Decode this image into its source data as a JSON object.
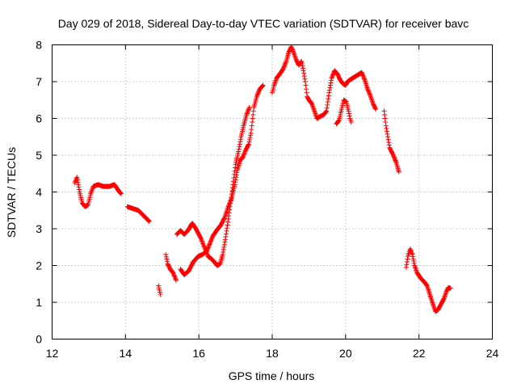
{
  "chart_data": {
    "type": "scatter",
    "title": "Day 029 of 2018, Sidereal Day-to-day VTEC variation (SDTVAR) for receiver bavc",
    "xlabel": "GPS time / hours",
    "ylabel": "SDTVAR / TECUs",
    "xlim": [
      12,
      24
    ],
    "ylim": [
      0,
      8
    ],
    "xticks": [
      "12",
      "14",
      "16",
      "18",
      "20",
      "22",
      "24"
    ],
    "yticks": [
      "0",
      "1",
      "2",
      "3",
      "4",
      "5",
      "6",
      "7",
      "8"
    ],
    "grid": true,
    "marker": "+",
    "color": "#ff0000",
    "series": [
      {
        "name": "SDTVAR",
        "polylines": [
          [
            [
              12.62,
              4.25
            ],
            [
              12.68,
              4.4
            ],
            [
              12.75,
              4.0
            ],
            [
              12.82,
              3.7
            ],
            [
              12.9,
              3.6
            ],
            [
              12.98,
              3.65
            ],
            [
              13.05,
              3.95
            ],
            [
              13.12,
              4.15
            ],
            [
              13.25,
              4.2
            ],
            [
              13.4,
              4.15
            ],
            [
              13.55,
              4.15
            ],
            [
              13.7,
              4.2
            ],
            [
              13.8,
              4.05
            ],
            [
              13.88,
              3.95
            ]
          ],
          [
            [
              14.05,
              3.6
            ],
            [
              14.2,
              3.55
            ],
            [
              14.35,
              3.5
            ],
            [
              14.45,
              3.4
            ],
            [
              14.55,
              3.3
            ],
            [
              14.65,
              3.2
            ]
          ],
          [
            [
              14.9,
              1.45
            ],
            [
              14.95,
              1.22
            ]
          ],
          [
            [
              15.1,
              2.3
            ],
            [
              15.15,
              2.05
            ],
            [
              15.22,
              1.9
            ],
            [
              15.3,
              1.8
            ],
            [
              15.38,
              1.6
            ]
          ],
          [
            [
              15.4,
              2.85
            ],
            [
              15.5,
              2.95
            ],
            [
              15.6,
              2.85
            ],
            [
              15.7,
              2.95
            ],
            [
              15.82,
              3.15
            ],
            [
              15.92,
              3.0
            ],
            [
              16.05,
              2.75
            ],
            [
              16.15,
              2.5
            ],
            [
              16.25,
              2.25
            ],
            [
              16.32,
              2.2
            ],
            [
              16.42,
              2.1
            ],
            [
              16.5,
              2.0
            ],
            [
              16.58,
              2.05
            ],
            [
              16.65,
              2.3
            ],
            [
              16.72,
              2.7
            ],
            [
              16.78,
              3.1
            ],
            [
              16.85,
              3.6
            ],
            [
              16.93,
              4.2
            ],
            [
              17.0,
              4.75
            ],
            [
              17.08,
              5.1
            ],
            [
              17.15,
              5.5
            ],
            [
              17.22,
              5.8
            ],
            [
              17.3,
              6.1
            ],
            [
              17.38,
              6.3
            ]
          ],
          [
            [
              15.5,
              1.9
            ],
            [
              15.6,
              1.75
            ],
            [
              15.72,
              1.85
            ],
            [
              15.85,
              2.1
            ],
            [
              15.98,
              2.25
            ],
            [
              16.1,
              2.3
            ],
            [
              16.22,
              2.4
            ],
            [
              16.3,
              2.6
            ],
            [
              16.38,
              2.8
            ],
            [
              16.48,
              2.95
            ],
            [
              16.6,
              3.1
            ],
            [
              16.7,
              3.3
            ],
            [
              16.8,
              3.6
            ],
            [
              16.9,
              3.85
            ],
            [
              16.98,
              4.2
            ],
            [
              17.05,
              4.6
            ],
            [
              17.12,
              4.85
            ],
            [
              17.2,
              4.95
            ],
            [
              17.28,
              5.15
            ],
            [
              17.36,
              5.3
            ],
            [
              17.42,
              5.6
            ],
            [
              17.5,
              6.3
            ],
            [
              17.58,
              6.6
            ],
            [
              17.66,
              6.8
            ],
            [
              17.75,
              6.9
            ]
          ],
          [
            [
              18.0,
              6.7
            ],
            [
              18.05,
              6.9
            ],
            [
              18.12,
              7.1
            ],
            [
              18.2,
              7.2
            ],
            [
              18.3,
              7.35
            ],
            [
              18.38,
              7.55
            ],
            [
              18.45,
              7.8
            ],
            [
              18.52,
              7.95
            ],
            [
              18.58,
              7.8
            ],
            [
              18.65,
              7.6
            ],
            [
              18.72,
              7.45
            ],
            [
              18.8,
              7.55
            ],
            [
              18.85,
              7.3
            ],
            [
              18.9,
              7.0
            ],
            [
              18.95,
              6.6
            ],
            [
              19.0,
              6.5
            ],
            [
              19.08,
              6.4
            ],
            [
              19.15,
              6.2
            ],
            [
              19.22,
              6.0
            ],
            [
              19.3,
              6.05
            ],
            [
              19.4,
              6.1
            ],
            [
              19.48,
              6.2
            ],
            [
              19.55,
              6.7
            ],
            [
              19.62,
              7.1
            ],
            [
              19.7,
              7.3
            ],
            [
              19.78,
              7.2
            ],
            [
              19.85,
              7.05
            ],
            [
              19.92,
              6.95
            ],
            [
              20.0,
              6.9
            ],
            [
              20.05,
              7.0
            ],
            [
              20.12,
              7.05
            ],
            [
              20.2,
              7.1
            ],
            [
              20.28,
              7.15
            ],
            [
              20.36,
              7.2
            ],
            [
              20.44,
              7.25
            ],
            [
              20.52,
              7.05
            ],
            [
              20.6,
              6.8
            ],
            [
              20.68,
              6.6
            ],
            [
              20.75,
              6.4
            ],
            [
              20.82,
              6.25
            ]
          ],
          [
            [
              19.75,
              5.85
            ],
            [
              19.82,
              5.95
            ],
            [
              19.88,
              6.2
            ],
            [
              19.95,
              6.5
            ],
            [
              20.02,
              6.45
            ],
            [
              20.08,
              6.2
            ],
            [
              20.12,
              6.0
            ],
            [
              20.15,
              5.9
            ]
          ],
          [
            [
              21.05,
              6.2
            ],
            [
              21.1,
              5.8
            ],
            [
              21.15,
              5.5
            ],
            [
              21.2,
              5.2
            ],
            [
              21.3,
              5.0
            ],
            [
              21.38,
              4.8
            ],
            [
              21.45,
              4.55
            ]
          ],
          [
            [
              21.65,
              1.95
            ],
            [
              21.7,
              2.25
            ],
            [
              21.76,
              2.45
            ],
            [
              21.82,
              2.3
            ],
            [
              21.88,
              2.0
            ],
            [
              21.95,
              1.8
            ],
            [
              22.05,
              1.65
            ],
            [
              22.15,
              1.55
            ],
            [
              22.22,
              1.45
            ],
            [
              22.3,
              1.2
            ],
            [
              22.38,
              0.95
            ],
            [
              22.45,
              0.75
            ],
            [
              22.52,
              0.8
            ],
            [
              22.6,
              0.95
            ],
            [
              22.68,
              1.1
            ],
            [
              22.75,
              1.3
            ],
            [
              22.8,
              1.4
            ],
            [
              22.86,
              1.38
            ]
          ]
        ]
      }
    ]
  }
}
